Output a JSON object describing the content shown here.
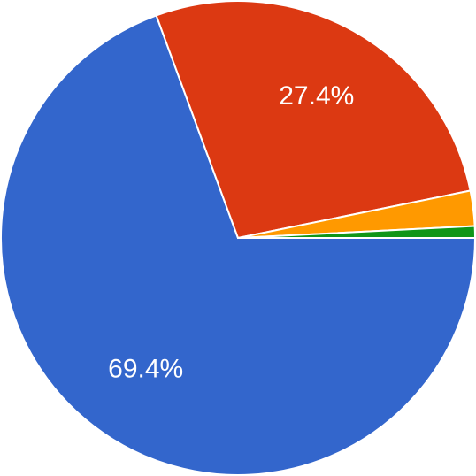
{
  "chart_data": {
    "type": "pie",
    "values": [
      69.4,
      27.4,
      2.4,
      0.8
    ],
    "value_labels": [
      "69.4%",
      "27.4%",
      null,
      null
    ],
    "colors": [
      "#3366cc",
      "#dc3912",
      "#ff9900",
      "#109618"
    ]
  }
}
